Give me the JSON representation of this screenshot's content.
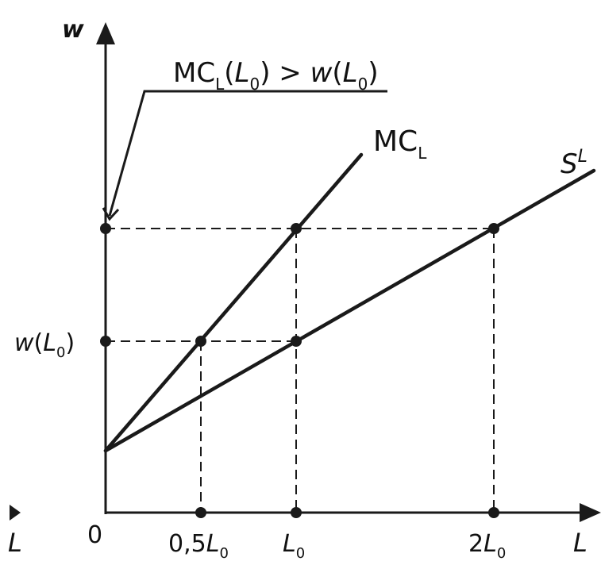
{
  "diagram": {
    "axis_y_label": "w",
    "axis_x_label": "L",
    "axis_x_label_left": "L",
    "origin_label": "0",
    "curve_mc_label_main": "MC",
    "curve_mc_label_sub": "L",
    "curve_supply_label_main": "S",
    "curve_supply_label_sup": "L",
    "annotation": {
      "mc": "MC",
      "mc_sub": "L",
      "l0_open": "(",
      "l0_var": "L",
      "l0_sub": "0",
      "l0_close": ")",
      "gt": " > ",
      "w": "w",
      "w_open": "(",
      "w_var": "L",
      "w_sub": "0",
      "w_close": ")"
    },
    "y_tick_wl0": {
      "w": "w",
      "open": "(",
      "var": "L",
      "sub": "0",
      "close": ")"
    },
    "x_ticks": [
      {
        "prefix": "0,5",
        "var": "L",
        "sub": "0"
      },
      {
        "prefix": "",
        "var": "L",
        "sub": "0"
      },
      {
        "prefix": "2",
        "var": "L",
        "sub": "0"
      }
    ]
  }
}
